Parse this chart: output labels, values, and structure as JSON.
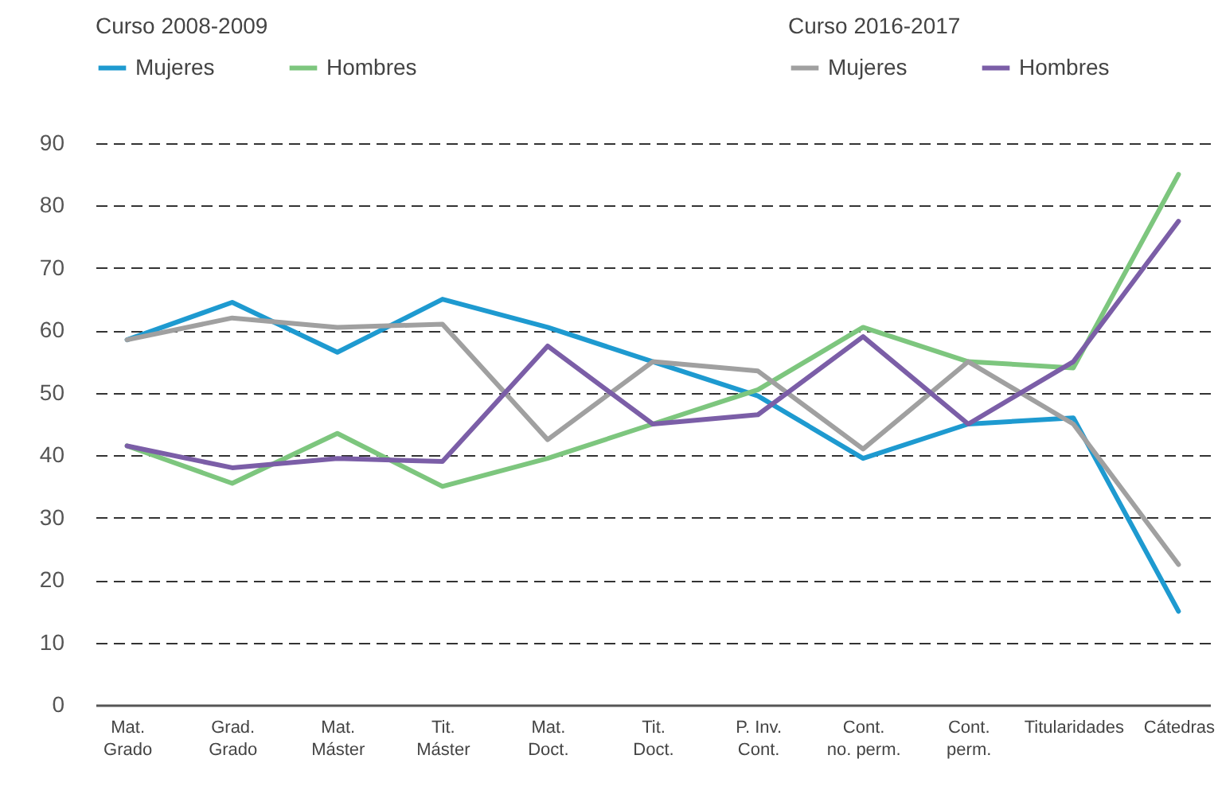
{
  "chart_data": {
    "type": "line",
    "legend_title": [
      "Curso 2008-2009",
      "Curso 2016-2017"
    ],
    "categories": [
      "Mat.\nGrado",
      "Grad.\nGrado",
      "Mat.\nMáster",
      "Tit.\nMáster",
      "Mat.\nDoct.",
      "Tit.\nDoct.",
      "P. Inv.\nCont.",
      "Cont.\nno. perm.",
      "Cont.\nperm.",
      "Titularidades",
      "Cátedras"
    ],
    "series": [
      {
        "name": "Mujeres",
        "color": "#1e9ad0",
        "values": [
          58.5,
          64.5,
          56.5,
          65,
          60.5,
          55,
          49.5,
          39.5,
          45,
          46,
          15
        ]
      },
      {
        "name": "Hombres",
        "color": "#7dc67e",
        "values": [
          41.5,
          35.5,
          43.5,
          35,
          39.5,
          45,
          50.5,
          60.5,
          55,
          54,
          85
        ]
      },
      {
        "name": "Mujeres",
        "color": "#a0a0a0",
        "values": [
          58.5,
          62,
          60.5,
          61,
          42.5,
          55,
          53.5,
          41,
          55,
          45,
          22.5
        ]
      },
      {
        "name": "Hombres",
        "color": "#7b5ea7",
        "values": [
          41.5,
          38,
          39.5,
          39,
          57.5,
          45,
          46.5,
          59,
          45,
          55,
          77.5
        ]
      }
    ],
    "ylim": [
      0,
      90
    ],
    "yticks": [
      0,
      10,
      20,
      30,
      40,
      50,
      60,
      70,
      80,
      90
    ],
    "grid": "y",
    "legend": "top"
  }
}
